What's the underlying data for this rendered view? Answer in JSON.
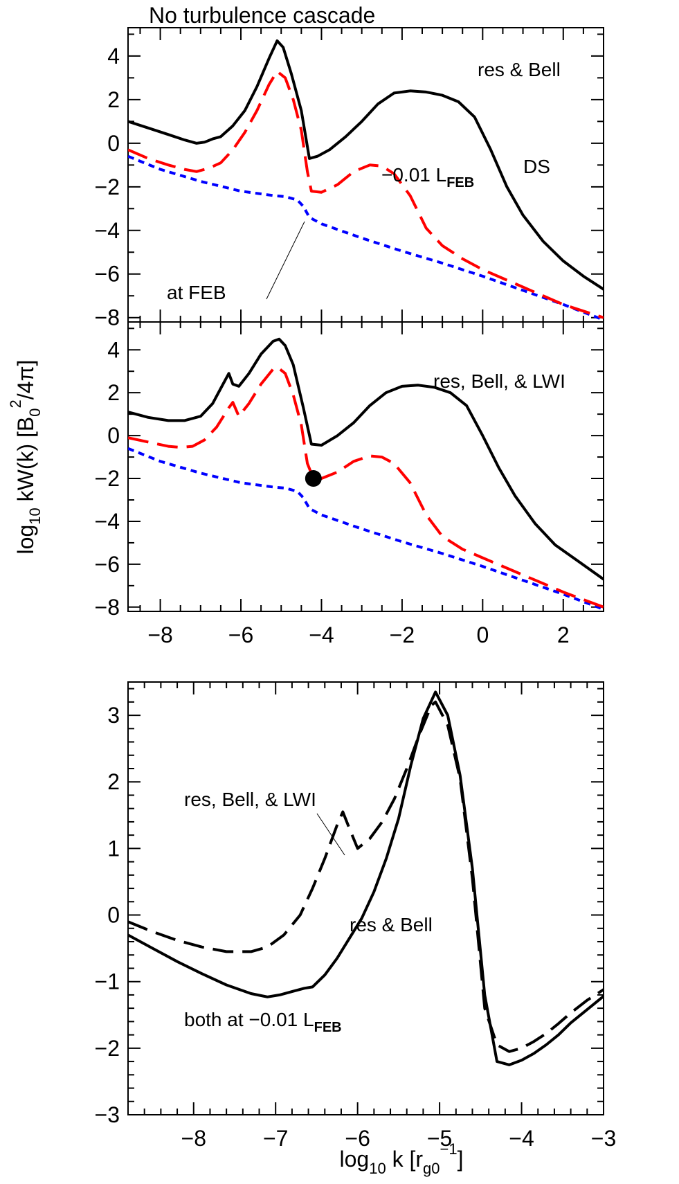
{
  "figure": {
    "title": "No turbulence cascade",
    "shared_ylabel_main": "log",
    "shared_ylabel_sub": "10",
    "shared_ylabel_rest": " kW(k)  [B",
    "shared_ylabel_b_sub": "0",
    "shared_ylabel_b_sup": "2",
    "shared_ylabel_end": "/4π]",
    "bottom_xlabel_main": "log",
    "bottom_xlabel_sub": "10",
    "bottom_xlabel_k": " k [r",
    "bottom_xlabel_r_sub": "g0",
    "bottom_xlabel_r_sup": "−1",
    "bottom_xlabel_end": "]"
  },
  "chart_data": [
    {
      "type": "line",
      "panel": "top",
      "xlim": [
        -8.8,
        3
      ],
      "ylim": [
        -8.2,
        5.3
      ],
      "xticks": [
        -8,
        -6,
        -4,
        -2,
        0,
        2
      ],
      "yticks": [
        4,
        2,
        0,
        -2,
        -4,
        -6,
        -8
      ],
      "ytick_labels": [
        "4",
        "2",
        "0",
        "−2",
        "−4",
        "−6",
        "−8"
      ],
      "annotations": {
        "label": "res & Bell",
        "ds": "DS",
        "lfeb_prefix": "−0.01 L",
        "lfeb_sub": "FEB",
        "at_feb": "at FEB"
      },
      "series": [
        {
          "style": "solid",
          "color": "#000000",
          "x": [
            -8.8,
            -8.3,
            -7.8,
            -7.4,
            -7.1,
            -6.9,
            -6.7,
            -6.5,
            -6.2,
            -5.9,
            -5.6,
            -5.3,
            -5.1,
            -4.95,
            -4.75,
            -4.5,
            -4.3,
            -4.1,
            -3.8,
            -3.4,
            -3.0,
            -2.6,
            -2.2,
            -1.8,
            -1.4,
            -1.0,
            -0.6,
            -0.2,
            0.2,
            0.6,
            1.0,
            1.5,
            2.0,
            2.5,
            3.0
          ],
          "y": [
            1.0,
            0.7,
            0.4,
            0.15,
            0.0,
            0.05,
            0.2,
            0.3,
            0.8,
            1.5,
            2.6,
            3.9,
            4.7,
            4.4,
            3.2,
            1.5,
            -0.7,
            -0.6,
            -0.3,
            0.3,
            1.0,
            1.8,
            2.3,
            2.4,
            2.35,
            2.2,
            1.9,
            1.2,
            -0.3,
            -2.0,
            -3.3,
            -4.5,
            -5.4,
            -6.1,
            -6.7
          ]
        },
        {
          "style": "dashed",
          "color": "#ff0000",
          "x": [
            -8.8,
            -8.3,
            -7.8,
            -7.4,
            -7.1,
            -6.8,
            -6.5,
            -6.2,
            -5.9,
            -5.6,
            -5.3,
            -5.1,
            -4.9,
            -4.7,
            -4.5,
            -4.35,
            -4.25,
            -4.0,
            -3.6,
            -3.2,
            -2.8,
            -2.5,
            -2.2,
            -1.8,
            -1.4,
            -1.0,
            -0.5,
            0.0,
            0.5,
            1.0,
            1.5,
            2.0,
            2.5,
            3.0
          ],
          "y": [
            -0.3,
            -0.7,
            -1.0,
            -1.2,
            -1.3,
            -1.15,
            -0.9,
            -0.3,
            0.5,
            1.5,
            2.7,
            3.3,
            3.0,
            2.0,
            0.6,
            -1.3,
            -2.2,
            -2.25,
            -1.9,
            -1.3,
            -1.0,
            -1.05,
            -1.4,
            -2.4,
            -3.9,
            -4.7,
            -5.3,
            -5.8,
            -6.2,
            -6.6,
            -7.0,
            -7.4,
            -7.7,
            -8.0
          ]
        },
        {
          "style": "dotted",
          "color": "#0000ff",
          "x": [
            -8.8,
            -8.0,
            -7.0,
            -6.0,
            -5.2,
            -4.9,
            -4.6,
            -4.45,
            -4.3,
            -4.0,
            -3.0,
            -2.0,
            -1.0,
            0.0,
            1.0,
            2.0,
            3.0
          ],
          "y": [
            -0.6,
            -1.2,
            -1.75,
            -2.2,
            -2.4,
            -2.45,
            -2.6,
            -2.9,
            -3.4,
            -3.7,
            -4.35,
            -4.95,
            -5.5,
            -6.1,
            -6.75,
            -7.4,
            -8.1
          ]
        }
      ]
    },
    {
      "type": "line",
      "panel": "middle",
      "xlim": [
        -8.8,
        3
      ],
      "ylim": [
        -8.2,
        5.3
      ],
      "xticks": [
        -8,
        -6,
        -4,
        -2,
        0,
        2
      ],
      "xtick_labels": [
        "−8",
        "−6",
        "−4",
        "−2",
        "0",
        "2"
      ],
      "yticks": [
        4,
        2,
        0,
        -2,
        -4,
        -6,
        -8
      ],
      "ytick_labels": [
        "4",
        "2",
        "0",
        "−2",
        "−4",
        "−6",
        "−8"
      ],
      "annotations": {
        "label": "res, Bell, & LWI"
      },
      "marker": {
        "x": -4.2,
        "y": -2.0
      },
      "series": [
        {
          "style": "solid",
          "color": "#000000",
          "x": [
            -8.8,
            -8.3,
            -7.8,
            -7.4,
            -7.0,
            -6.7,
            -6.5,
            -6.3,
            -6.2,
            -6.05,
            -5.8,
            -5.5,
            -5.2,
            -5.05,
            -4.9,
            -4.7,
            -4.45,
            -4.25,
            -4.0,
            -3.6,
            -3.2,
            -2.8,
            -2.4,
            -2.0,
            -1.6,
            -1.2,
            -0.8,
            -0.4,
            0.0,
            0.4,
            0.8,
            1.3,
            1.8,
            2.4,
            3.0
          ],
          "y": [
            1.1,
            0.85,
            0.7,
            0.7,
            0.9,
            1.5,
            2.2,
            2.9,
            2.4,
            2.3,
            2.9,
            3.8,
            4.4,
            4.5,
            4.2,
            3.3,
            1.3,
            -0.4,
            -0.45,
            0.0,
            0.6,
            1.4,
            2.0,
            2.3,
            2.35,
            2.25,
            2.0,
            1.4,
            0.0,
            -1.5,
            -2.8,
            -4.1,
            -5.1,
            -5.9,
            -6.7
          ]
        },
        {
          "style": "dashed",
          "color": "#ff0000",
          "x": [
            -8.8,
            -8.3,
            -7.8,
            -7.5,
            -7.2,
            -6.9,
            -6.6,
            -6.3,
            -6.2,
            -6.05,
            -5.8,
            -5.5,
            -5.2,
            -5.1,
            -4.9,
            -4.7,
            -4.5,
            -4.35,
            -4.2,
            -4.0,
            -3.6,
            -3.2,
            -2.8,
            -2.5,
            -2.2,
            -1.8,
            -1.4,
            -1.0,
            -0.5,
            0.0,
            0.5,
            1.0,
            1.5,
            2.0,
            2.5,
            3.0
          ],
          "y": [
            -0.1,
            -0.3,
            -0.5,
            -0.55,
            -0.5,
            -0.2,
            0.4,
            1.3,
            1.55,
            0.9,
            1.5,
            2.4,
            3.1,
            3.2,
            2.9,
            1.9,
            0.5,
            -1.3,
            -2.0,
            -2.0,
            -1.7,
            -1.2,
            -0.95,
            -1.0,
            -1.3,
            -2.2,
            -3.7,
            -4.7,
            -5.3,
            -5.7,
            -6.1,
            -6.5,
            -6.9,
            -7.3,
            -7.65,
            -8.0
          ]
        },
        {
          "style": "dotted",
          "color": "#0000ff",
          "x": [
            -8.8,
            -8.0,
            -7.0,
            -6.0,
            -5.2,
            -4.9,
            -4.6,
            -4.45,
            -4.3,
            -4.0,
            -3.0,
            -2.0,
            -1.0,
            0.0,
            1.0,
            2.0,
            3.0
          ],
          "y": [
            -0.6,
            -1.2,
            -1.75,
            -2.2,
            -2.4,
            -2.45,
            -2.6,
            -2.9,
            -3.4,
            -3.7,
            -4.35,
            -4.95,
            -5.5,
            -6.1,
            -6.75,
            -7.4,
            -8.1
          ]
        }
      ]
    },
    {
      "type": "line",
      "panel": "bottom",
      "xlim": [
        -8.8,
        -3
      ],
      "ylim": [
        -3,
        3.5
      ],
      "xticks": [
        -8,
        -7,
        -6,
        -5,
        -4,
        -3
      ],
      "xtick_labels": [
        "−8",
        "−7",
        "−6",
        "−5",
        "−4",
        "−3"
      ],
      "yticks": [
        3,
        2,
        1,
        0,
        -1,
        -2,
        -3
      ],
      "ytick_labels": [
        "3",
        "2",
        "1",
        "0",
        "−1",
        "−2",
        "−3"
      ],
      "annotations": {
        "lwi_label": "res, Bell, & LWI",
        "bell_label": "res & Bell",
        "both_prefix": "both at −0.01 L",
        "both_sub": "FEB"
      },
      "series": [
        {
          "style": "solid",
          "color": "#000000",
          "x": [
            -8.8,
            -8.5,
            -8.2,
            -7.9,
            -7.6,
            -7.3,
            -7.1,
            -6.95,
            -6.8,
            -6.65,
            -6.55,
            -6.4,
            -6.25,
            -6.1,
            -5.95,
            -5.8,
            -5.65,
            -5.5,
            -5.35,
            -5.2,
            -5.05,
            -4.9,
            -4.75,
            -4.6,
            -4.45,
            -4.3,
            -4.15,
            -4.0,
            -3.85,
            -3.7,
            -3.55,
            -3.4,
            -3.2,
            -3.0
          ],
          "y": [
            -0.3,
            -0.5,
            -0.7,
            -0.88,
            -1.05,
            -1.18,
            -1.23,
            -1.2,
            -1.15,
            -1.1,
            -1.08,
            -0.9,
            -0.65,
            -0.35,
            -0.05,
            0.35,
            0.85,
            1.45,
            2.25,
            2.95,
            3.35,
            3.0,
            2.1,
            0.7,
            -1.2,
            -2.2,
            -2.25,
            -2.18,
            -2.08,
            -1.95,
            -1.8,
            -1.62,
            -1.42,
            -1.22
          ]
        },
        {
          "style": "dashed",
          "color": "#000000",
          "x": [
            -8.8,
            -8.5,
            -8.2,
            -7.9,
            -7.6,
            -7.3,
            -7.1,
            -6.9,
            -6.7,
            -6.55,
            -6.4,
            -6.25,
            -6.18,
            -6.1,
            -6.0,
            -5.85,
            -5.7,
            -5.55,
            -5.4,
            -5.25,
            -5.1,
            -5.05,
            -4.9,
            -4.75,
            -4.6,
            -4.45,
            -4.3,
            -4.15,
            -4.0,
            -3.85,
            -3.7,
            -3.55,
            -3.4,
            -3.2,
            -3.0
          ],
          "y": [
            -0.1,
            -0.25,
            -0.38,
            -0.48,
            -0.55,
            -0.55,
            -0.48,
            -0.3,
            0.0,
            0.4,
            0.85,
            1.35,
            1.55,
            1.3,
            1.0,
            1.15,
            1.4,
            1.75,
            2.2,
            2.7,
            3.15,
            3.2,
            2.85,
            2.05,
            0.55,
            -1.4,
            -1.95,
            -2.05,
            -2.0,
            -1.9,
            -1.78,
            -1.63,
            -1.47,
            -1.28,
            -1.12
          ]
        }
      ]
    }
  ]
}
